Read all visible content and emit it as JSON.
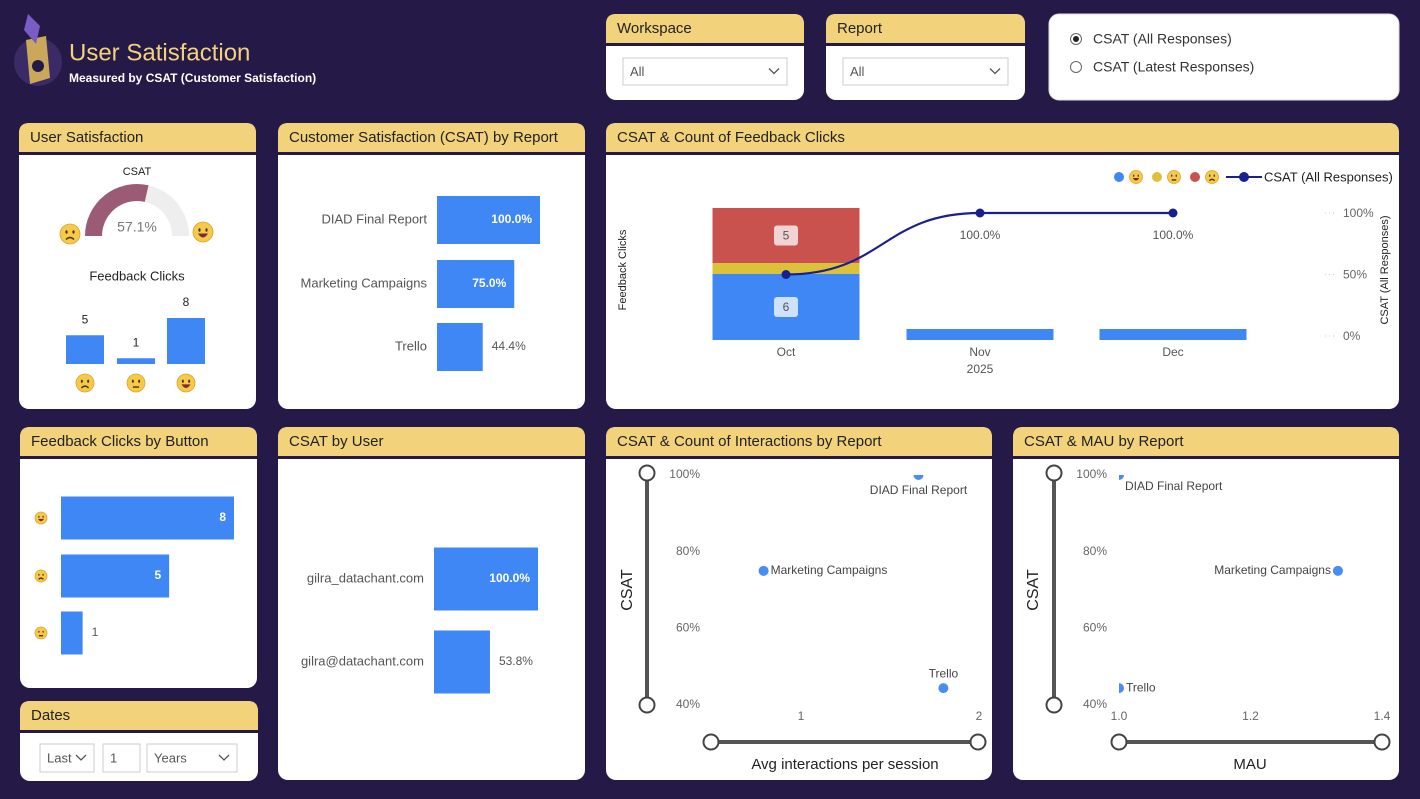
{
  "header": {
    "title": "User Satisfaction",
    "subtitle": "Measured by CSAT (Customer Satisfaction)"
  },
  "filters": {
    "workspace": {
      "label": "Workspace",
      "value": "All"
    },
    "report": {
      "label": "Report",
      "value": "All"
    },
    "measure": {
      "options": [
        "CSAT (All Responses)",
        "CSAT (Latest Responses)"
      ],
      "selected": 0
    }
  },
  "dates": {
    "title": "Dates",
    "period": "Last",
    "count": 1,
    "unit": "Years"
  },
  "chart_data": [
    {
      "type": "gauge",
      "title": "User Satisfaction",
      "label": "CSAT",
      "value": 57.1,
      "value_label": "57.1%",
      "ylim": [
        0,
        100
      ],
      "color": "#9b5b74"
    },
    {
      "type": "column",
      "title": "Feedback Clicks",
      "categories": [
        null,
        null,
        null
      ],
      "values": [
        5,
        1,
        8
      ],
      "color": "#3f87f5"
    },
    {
      "type": "hbar",
      "title": "Customer Satisfaction (CSAT) by Report",
      "categories": [
        "DIAD Final Report",
        "Marketing Campaigns",
        "Trello"
      ],
      "values": [
        100,
        75,
        44.4
      ],
      "value_labels": [
        "100.0%",
        "75.0%",
        "44.4%"
      ],
      "color": "#3f87f5"
    },
    {
      "type": "combo",
      "title": "CSAT & Count of Feedback Clicks",
      "categories": [
        "Oct",
        "Nov",
        "Dec"
      ],
      "x_group": "2025",
      "ylabel": "Feedback Clicks",
      "y2label": "CSAT (All Responses)",
      "y2lim": [
        0,
        100
      ],
      "y2ticks": [
        {
          "value": 0,
          "label": "0%"
        },
        {
          "value": 50,
          "label": "50%"
        },
        {
          "value": 100,
          "label": "100%"
        }
      ],
      "series": [
        {
          "type": "bar",
          "color": "#3f87f5",
          "values": [
            6,
            1,
            1
          ],
          "value_labels": [
            "6",
            null,
            null
          ]
        },
        {
          "type": "bar",
          "color": "#dcc13a",
          "values": [
            1,
            null,
            null
          ]
        },
        {
          "type": "bar",
          "color": "#c9524f",
          "values": [
            5,
            null,
            null
          ],
          "value_labels": [
            "5",
            null,
            null
          ]
        },
        {
          "type": "line",
          "name": "CSAT (All Responses)",
          "color": "#1a1f8f",
          "axis": "y2",
          "values": [
            50,
            100,
            100
          ],
          "value_labels": [
            null,
            "100.0%",
            "100.0%"
          ]
        }
      ]
    },
    {
      "type": "hbar",
      "title": "Feedback Clicks by Button",
      "categories": [
        null,
        null,
        null
      ],
      "values": [
        8,
        5,
        1
      ],
      "color": "#3f87f5"
    },
    {
      "type": "hbar",
      "title": "CSAT by User",
      "categories": [
        "gilra_datachant.com",
        "gilra@datachant.com"
      ],
      "values": [
        100,
        53.8
      ],
      "value_labels": [
        "100.0%",
        "53.8%"
      ],
      "color": "#3f87f5"
    },
    {
      "type": "scatter",
      "title": "CSAT & Count of Interactions by Report",
      "xlabel": "Avg interactions per session",
      "ylabel": "CSAT",
      "labels": [
        "DIAD Final Report",
        "Marketing Campaigns",
        "Trello"
      ],
      "x": [
        1.66,
        0.79,
        1.8
      ],
      "y": [
        100,
        75,
        44.4
      ],
      "xlim": [
        0.2,
        2.05
      ],
      "xticks": [
        1,
        2
      ],
      "ylim": [
        40,
        100
      ],
      "yticks": [
        {
          "value": 40,
          "label": "40%"
        },
        {
          "value": 60,
          "label": "60%"
        },
        {
          "value": 80,
          "label": "80%"
        },
        {
          "value": 100,
          "label": "100%"
        }
      ],
      "color": "#4a8df2"
    },
    {
      "type": "scatter",
      "title": "CSAT & MAU by Report",
      "xlabel": "MAU",
      "ylabel": "CSAT",
      "labels": [
        "DIAD Final Report",
        "Marketing Campaigns",
        "Trello"
      ],
      "x": [
        1,
        1.333,
        1
      ],
      "y": [
        100,
        75,
        44.4
      ],
      "xlim": [
        1,
        1.4
      ],
      "xticks": [
        {
          "value": 1,
          "label": "1.0"
        },
        {
          "value": 1.2,
          "label": "1.2"
        },
        {
          "value": 1.4,
          "label": "1.4"
        }
      ],
      "ylim": [
        40,
        100
      ],
      "yticks": [
        {
          "value": 40,
          "label": "40%"
        },
        {
          "value": 60,
          "label": "60%"
        },
        {
          "value": 80,
          "label": "80%"
        },
        {
          "value": 100,
          "label": "100%"
        }
      ],
      "color": "#4a8df2"
    }
  ]
}
